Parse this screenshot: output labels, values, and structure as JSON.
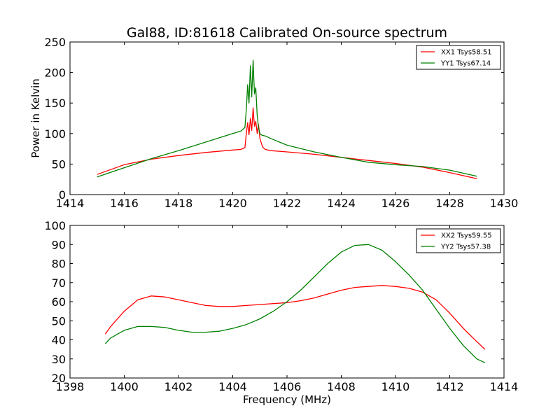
{
  "colors": {
    "red": "#ff0000",
    "green": "#008000"
  },
  "chart_data": [
    {
      "type": "line",
      "title": "Gal88, ID:81618 Calibrated On-source spectrum",
      "xlabel": "",
      "ylabel": "Power in Kelvin",
      "xlim": [
        1414,
        1430
      ],
      "ylim": [
        0,
        250
      ],
      "xticks": [
        "1414",
        "1416",
        "1418",
        "1420",
        "1422",
        "1424",
        "1426",
        "1428",
        "1430"
      ],
      "yticks": [
        "0",
        "50",
        "100",
        "150",
        "200",
        "250"
      ],
      "legend_position": "top-right",
      "grid": false,
      "series": [
        {
          "name": "XX1 Tsys58.51",
          "color": "#ff0000",
          "x": [
            1415.0,
            1416.0,
            1417.0,
            1418.0,
            1419.0,
            1420.0,
            1420.3,
            1420.45,
            1420.5,
            1420.55,
            1420.6,
            1420.65,
            1420.7,
            1420.75,
            1420.8,
            1420.85,
            1420.9,
            1420.95,
            1421.0,
            1421.05,
            1421.1,
            1421.2,
            1421.4,
            1422.0,
            1423.0,
            1424.0,
            1425.0,
            1426.0,
            1427.0,
            1428.0,
            1429.0
          ],
          "y": [
            33,
            49,
            58,
            64,
            69,
            73,
            74,
            77,
            100,
            118,
            98,
            125,
            105,
            142,
            112,
            120,
            100,
            115,
            92,
            85,
            78,
            74,
            72,
            70,
            66,
            61,
            56,
            51,
            45,
            36,
            26
          ]
        },
        {
          "name": "YY1 Tsys67.14",
          "color": "#008000",
          "x": [
            1415.0,
            1416.0,
            1417.0,
            1418.0,
            1419.0,
            1420.0,
            1420.3,
            1420.45,
            1420.5,
            1420.55,
            1420.6,
            1420.65,
            1420.7,
            1420.75,
            1420.8,
            1420.85,
            1420.9,
            1420.95,
            1421.0,
            1421.05,
            1421.1,
            1421.2,
            1421.4,
            1422.0,
            1423.0,
            1424.0,
            1425.0,
            1426.0,
            1427.0,
            1428.0,
            1429.0
          ],
          "y": [
            29,
            44,
            59,
            72,
            86,
            100,
            104,
            110,
            140,
            180,
            150,
            211,
            160,
            220,
            165,
            175,
            130,
            110,
            100,
            98,
            97,
            96,
            92,
            81,
            70,
            61,
            53,
            49,
            46,
            40,
            30
          ]
        }
      ]
    },
    {
      "type": "line",
      "title": "",
      "xlabel": "Frequency (MHz)",
      "ylabel": "",
      "xlim": [
        1398,
        1414
      ],
      "ylim": [
        20,
        100
      ],
      "xticks": [
        "1398",
        "1400",
        "1402",
        "1404",
        "1406",
        "1408",
        "1410",
        "1412",
        "1414"
      ],
      "yticks": [
        "20",
        "30",
        "40",
        "50",
        "60",
        "70",
        "80",
        "90",
        "100"
      ],
      "legend_position": "top-right",
      "grid": false,
      "series": [
        {
          "name": "XX2 Tsys59.55",
          "color": "#ff0000",
          "x": [
            1399.3,
            1399.5,
            1400.0,
            1400.5,
            1401.0,
            1401.5,
            1402.0,
            1402.5,
            1403.0,
            1403.5,
            1404.0,
            1404.5,
            1405.0,
            1405.5,
            1406.0,
            1406.5,
            1407.0,
            1407.5,
            1408.0,
            1408.5,
            1409.0,
            1409.5,
            1410.0,
            1410.5,
            1411.0,
            1411.5,
            1412.0,
            1412.5,
            1413.0,
            1413.3
          ],
          "y": [
            43,
            47,
            55,
            61,
            63,
            62.5,
            61,
            59.5,
            58,
            57.5,
            57.5,
            58,
            58.5,
            59,
            59.5,
            60.5,
            62,
            64,
            66,
            67.5,
            68,
            68.5,
            68,
            67,
            65,
            61,
            54,
            46,
            39,
            35
          ]
        },
        {
          "name": "YY2 Tsys57.38",
          "color": "#008000",
          "x": [
            1399.3,
            1399.5,
            1400.0,
            1400.5,
            1401.0,
            1401.5,
            1402.0,
            1402.5,
            1403.0,
            1403.5,
            1404.0,
            1404.5,
            1405.0,
            1405.5,
            1406.0,
            1406.5,
            1407.0,
            1407.5,
            1408.0,
            1408.5,
            1409.0,
            1409.5,
            1410.0,
            1410.5,
            1411.0,
            1411.5,
            1412.0,
            1412.5,
            1413.0,
            1413.3
          ],
          "y": [
            38,
            41,
            45,
            47,
            47,
            46.5,
            45,
            44,
            44,
            44.5,
            46,
            48,
            51,
            55,
            60,
            66,
            73,
            80,
            86,
            89.5,
            90,
            87,
            81,
            74,
            66,
            56,
            46,
            37,
            30,
            28
          ]
        }
      ]
    }
  ]
}
